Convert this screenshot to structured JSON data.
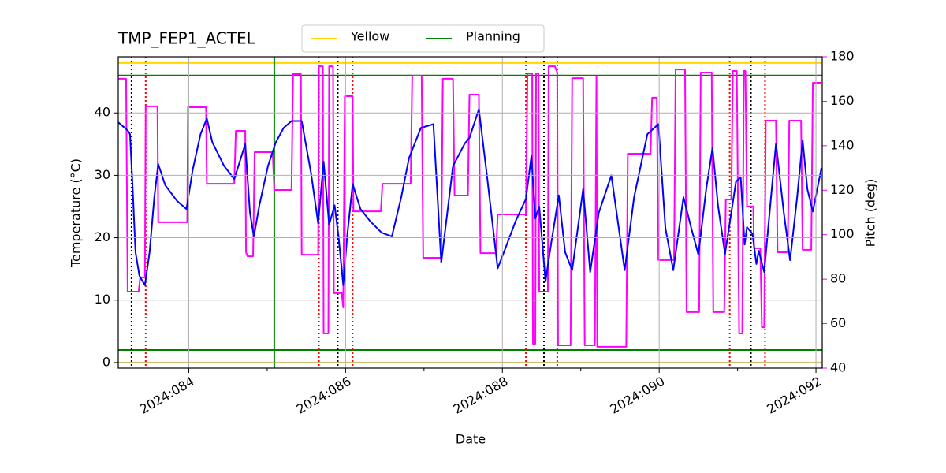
{
  "chart_data": {
    "type": "line",
    "title": "TMP_FEP1_ACTEL",
    "xlabel": "Date",
    "ylabel": "Temperature (°C)",
    "y2label": "Pitch (deg)",
    "xlim": [
      83.1,
      92.08
    ],
    "xticks": [
      {
        "value": 84,
        "label": "2024:084"
      },
      {
        "value": 86,
        "label": "2024:086"
      },
      {
        "value": 88,
        "label": "2024:088"
      },
      {
        "value": 90,
        "label": "2024:090"
      },
      {
        "value": 92,
        "label": "2024:092"
      }
    ],
    "xminorticks": [
      85,
      87,
      89,
      91
    ],
    "ylim": [
      -0.9,
      49
    ],
    "yticks": [
      0,
      10,
      20,
      30,
      40
    ],
    "y2lim": [
      40,
      180
    ],
    "y2ticks": [
      40,
      60,
      80,
      100,
      120,
      140,
      160,
      180
    ],
    "y2color": "#ff00ff",
    "grid": true,
    "legend": "upper center",
    "limits": [
      {
        "name": "Yellow",
        "color": "#ffd700",
        "values": [
          0,
          48
        ]
      },
      {
        "name": "Planning",
        "color": "#008000",
        "values": [
          2,
          46
        ],
        "x": [
          85.09
        ]
      }
    ],
    "vlines": [
      {
        "color": "#000000",
        "x": [
          83.27,
          85.9,
          88.53,
          91.17
        ]
      },
      {
        "color": "#ff0000",
        "x": [
          83.45,
          85.66,
          86.09,
          88.3,
          88.7,
          90.9,
          91.35
        ]
      }
    ],
    "series": [
      {
        "color": "#0000ff",
        "x": [
          83.1,
          83.22,
          83.25,
          83.28,
          83.32,
          83.37,
          83.44,
          83.5,
          83.56,
          83.61,
          83.7,
          83.85,
          83.97,
          84.05,
          84.15,
          84.23,
          84.3,
          84.45,
          84.58,
          84.72,
          84.78,
          84.83,
          84.9,
          85.01,
          85.11,
          85.21,
          85.31,
          85.44,
          85.56,
          85.65,
          85.72,
          85.79,
          85.86,
          85.91,
          85.97,
          86.02,
          86.09,
          86.19,
          86.31,
          86.46,
          86.59,
          86.71,
          86.81,
          86.96,
          87.12,
          87.22,
          87.37,
          87.52,
          87.58,
          87.7,
          87.8,
          87.94,
          88.02,
          88.17,
          88.3,
          88.37,
          88.42,
          88.47,
          88.55,
          88.62,
          88.72,
          88.8,
          88.89,
          89.03,
          89.12,
          89.23,
          89.39,
          89.56,
          89.68,
          89.85,
          89.99,
          90.08,
          90.18,
          90.31,
          90.41,
          90.5,
          90.6,
          90.68,
          90.75,
          90.84,
          90.98,
          91.04,
          91.09,
          91.12,
          91.19,
          91.24,
          91.27,
          91.34,
          91.39,
          91.49,
          91.59,
          91.67,
          91.76,
          91.83,
          91.89,
          91.96,
          92.07
        ],
        "values": [
          38.5,
          37.2,
          36.6,
          29.0,
          17.7,
          13.9,
          12.4,
          17.7,
          26.5,
          31.8,
          28.4,
          25.9,
          24.6,
          30.9,
          36.6,
          39.1,
          35.3,
          31.5,
          29.4,
          35.0,
          24.0,
          20.2,
          25.2,
          31.5,
          35.3,
          37.6,
          38.7,
          38.7,
          30.3,
          22.3,
          32.2,
          22.1,
          25.2,
          20.2,
          12.4,
          20.2,
          28.6,
          24.6,
          22.7,
          20.8,
          20.2,
          26.5,
          32.8,
          37.6,
          38.2,
          16.0,
          31.5,
          35.1,
          36.0,
          40.6,
          30.3,
          15.1,
          17.7,
          22.7,
          26.2,
          33.1,
          23.1,
          25.0,
          13.0,
          18.9,
          26.8,
          17.7,
          14.8,
          27.8,
          14.5,
          24.0,
          30.0,
          14.8,
          26.5,
          36.6,
          38.2,
          21.5,
          14.8,
          26.5,
          21.5,
          17.3,
          27.8,
          34.4,
          25.2,
          17.4,
          29.0,
          29.7,
          18.9,
          21.7,
          20.6,
          15.8,
          17.9,
          14.5,
          21.5,
          35.1,
          24.0,
          16.4,
          26.5,
          35.6,
          27.8,
          24.2,
          31.2
        ]
      },
      {
        "color": "#ff00ff",
        "axis": "y2",
        "x": [
          83.1,
          83.2,
          83.22,
          83.36,
          83.38,
          83.44,
          83.45,
          83.6,
          83.61,
          83.98,
          83.99,
          84.22,
          84.23,
          84.58,
          84.6,
          84.72,
          84.73,
          84.75,
          84.82,
          84.84,
          85.07,
          85.09,
          85.31,
          85.33,
          85.43,
          85.44,
          85.65,
          85.66,
          85.71,
          85.72,
          85.78,
          85.79,
          85.84,
          85.85,
          85.95,
          85.97,
          85.99,
          86.09,
          86.1,
          86.45,
          86.47,
          86.83,
          86.85,
          86.97,
          86.99,
          87.22,
          87.24,
          87.37,
          87.39,
          87.56,
          87.58,
          87.7,
          87.72,
          87.92,
          87.94,
          88.3,
          88.32,
          88.38,
          88.39,
          88.42,
          88.43,
          88.46,
          88.47,
          88.58,
          88.59,
          88.67,
          88.7,
          88.71,
          88.87,
          88.89,
          89.03,
          89.05,
          89.18,
          89.2,
          89.21,
          89.58,
          89.6,
          89.89,
          89.91,
          89.97,
          89.99,
          90.19,
          90.21,
          90.33,
          90.35,
          90.51,
          90.53,
          90.67,
          90.69,
          90.83,
          90.85,
          90.92,
          90.94,
          90.99,
          91.02,
          91.06,
          91.08,
          91.1,
          91.12,
          91.2,
          91.21,
          91.29,
          91.31,
          91.34,
          91.36,
          91.49,
          91.51,
          91.64,
          91.66,
          91.81,
          91.83,
          91.94,
          91.96,
          92.07
        ],
        "values": [
          170.1,
          170.1,
          74.4,
          74.4,
          80.8,
          80.8,
          157.7,
          157.7,
          105.6,
          105.6,
          157.3,
          157.3,
          122.9,
          122.9,
          146.7,
          146.7,
          92.1,
          90.3,
          90.3,
          137.1,
          137.1,
          120.1,
          120.1,
          172.2,
          172.2,
          91.0,
          91.0,
          175.7,
          175.7,
          55.6,
          55.6,
          175.7,
          175.7,
          73.7,
          73.7,
          67.3,
          162.3,
          162.3,
          110.5,
          110.5,
          122.9,
          122.9,
          171.5,
          171.5,
          89.6,
          89.6,
          170.1,
          170.1,
          117.6,
          117.6,
          163.0,
          163.0,
          91.7,
          91.7,
          109.1,
          109.1,
          172.5,
          172.5,
          51.0,
          51.0,
          172.5,
          172.5,
          74.4,
          74.4,
          175.7,
          175.7,
          172.9,
          50.3,
          50.3,
          170.4,
          170.4,
          50.3,
          50.3,
          171.1,
          49.6,
          49.6,
          136.4,
          136.4,
          161.6,
          161.6,
          88.6,
          88.6,
          174.3,
          174.3,
          65.2,
          65.2,
          172.9,
          172.9,
          65.2,
          65.2,
          115.8,
          115.8,
          173.6,
          173.6,
          55.6,
          55.6,
          173.6,
          173.6,
          112.7,
          112.7,
          93.9,
          93.9,
          58.4,
          58.4,
          151.3,
          151.3,
          92.1,
          92.1,
          151.3,
          151.3,
          93.2,
          93.2,
          168.3,
          168.3
        ]
      }
    ]
  }
}
